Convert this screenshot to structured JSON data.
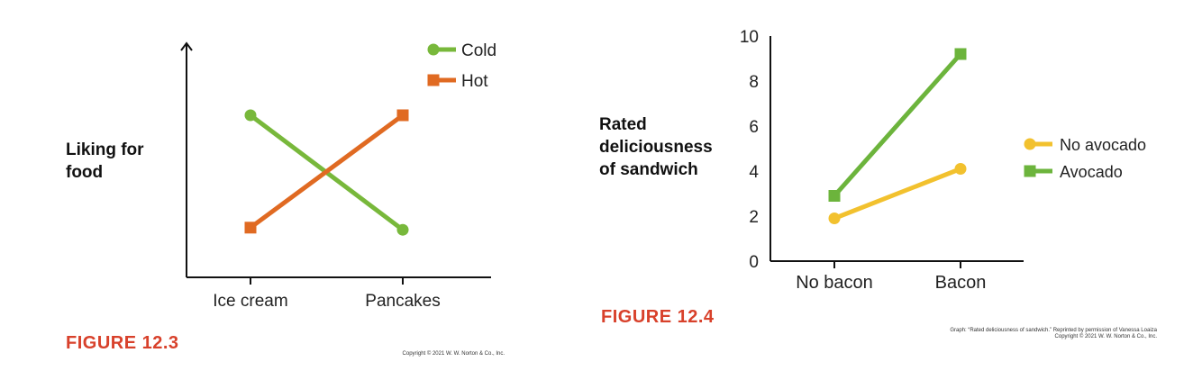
{
  "colors": {
    "green": "#78b83b",
    "orange": "#e06a22",
    "yellow": "#f2c12e",
    "avocado_green": "#6cb43c",
    "figure_red": "#d8412b",
    "axis": "#111111"
  },
  "chart_data": [
    {
      "type": "line",
      "figure_label": "FIGURE 12.3",
      "ylabel": "Liking for\nfood",
      "xlabel": "",
      "categories": [
        "Ice cream",
        "Pancakes"
      ],
      "y_ticks_shown": false,
      "ylim": [
        0,
        10
      ],
      "series": [
        {
          "name": "Cold",
          "marker": "circle",
          "color": "#78b83b",
          "values": [
            7.5,
            2.2
          ]
        },
        {
          "name": "Hot",
          "marker": "square",
          "color": "#e06a22",
          "values": [
            2.3,
            7.5
          ]
        }
      ],
      "legend": "top-right",
      "copyright": "Copyright © 2021 W. W. Norton & Co., Inc."
    },
    {
      "type": "line",
      "figure_label": "FIGURE 12.4",
      "ylabel": "Rated\ndeliciousness\nof sandwich",
      "xlabel": "",
      "categories": [
        "No bacon",
        "Bacon"
      ],
      "ylim": [
        0,
        10
      ],
      "yticks": [
        0,
        2,
        4,
        6,
        8,
        10
      ],
      "series": [
        {
          "name": "No avocado",
          "marker": "circle",
          "color": "#f2c12e",
          "values": [
            1.9,
            4.1
          ]
        },
        {
          "name": "Avocado",
          "marker": "square",
          "color": "#6cb43c",
          "values": [
            2.9,
            9.2
          ]
        }
      ],
      "legend": "right",
      "copyright": "Graph: “Rated deliciousness of sandwich.” Reprinted by permission of Vanessa Loaiza\nCopyright © 2021 W. W. Norton & Co., Inc."
    }
  ]
}
